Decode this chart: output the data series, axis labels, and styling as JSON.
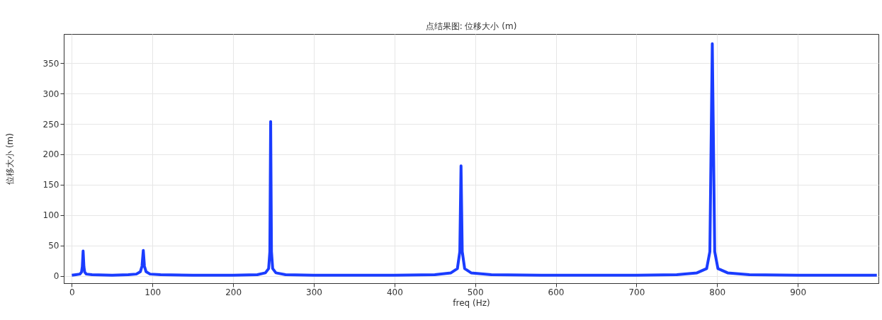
{
  "chart_data": {
    "type": "line",
    "title": "点结果图: 位移大小 (m)",
    "xlabel": "freq (Hz)",
    "ylabel": "位移大小 (m)",
    "x": [
      0,
      5,
      10,
      12,
      13,
      14,
      15,
      16,
      18,
      25,
      50,
      70,
      80,
      85,
      87,
      88.6,
      90,
      92,
      97,
      110,
      150,
      200,
      230,
      240,
      244,
      245.5,
      246.5,
      247.5,
      249,
      253,
      265,
      300,
      400,
      450,
      470,
      478,
      481,
      482.5,
      484,
      487,
      495,
      520,
      600,
      700,
      750,
      775,
      787,
      791,
      794,
      797,
      801,
      813,
      840,
      900,
      998
    ],
    "series": [
      {
        "color": "#1a3cff",
        "values": [
          1,
          2,
          3,
          6,
          15,
          41,
          15,
          6,
          3,
          2,
          1,
          2,
          3,
          7,
          16,
          42,
          16,
          7,
          3,
          2,
          1,
          1,
          2,
          5,
          12,
          40,
          254,
          40,
          12,
          5,
          2,
          1,
          1,
          2,
          5,
          12,
          40,
          181,
          40,
          12,
          5,
          2,
          1,
          1,
          2,
          5,
          12,
          40,
          382,
          40,
          12,
          5,
          2,
          1,
          1
        ]
      }
    ],
    "xlim": [
      -10,
      1000
    ],
    "xticks": [
      0,
      100,
      200,
      300,
      400,
      500,
      600,
      700,
      800,
      900
    ],
    "ylim": [
      -12,
      398
    ],
    "yticks": [
      0,
      50,
      100,
      150,
      200,
      250,
      300,
      350
    ],
    "grid": true,
    "marker": "none",
    "line_style": "solid"
  }
}
